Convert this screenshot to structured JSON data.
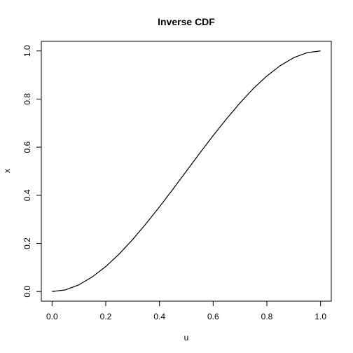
{
  "chart_data": {
    "type": "line",
    "title": "Inverse CDF",
    "xlabel": "u",
    "ylabel": "x",
    "xlim": [
      -0.04,
      1.04
    ],
    "ylim": [
      -0.04,
      1.04
    ],
    "xticks": [
      0.0,
      0.2,
      0.4,
      0.6,
      0.8,
      1.0
    ],
    "yticks": [
      0.0,
      0.2,
      0.4,
      0.6,
      0.8,
      1.0
    ],
    "xtick_labels": [
      "0.0",
      "0.2",
      "0.4",
      "0.6",
      "0.8",
      "1.0"
    ],
    "ytick_labels": [
      "0.0",
      "0.2",
      "0.4",
      "0.6",
      "0.8",
      "1.0"
    ],
    "grid": false,
    "series": [
      {
        "color": "#000000",
        "x": [
          0.0,
          0.05,
          0.1,
          0.15,
          0.2,
          0.25,
          0.3,
          0.35,
          0.4,
          0.45,
          0.5,
          0.55,
          0.6,
          0.65,
          0.7,
          0.75,
          0.8,
          0.85,
          0.9,
          0.95,
          1.0
        ],
        "y": [
          0.0,
          0.007,
          0.028,
          0.061,
          0.104,
          0.156,
          0.216,
          0.282,
          0.352,
          0.425,
          0.5,
          0.575,
          0.648,
          0.718,
          0.784,
          0.844,
          0.896,
          0.939,
          0.972,
          0.993,
          1.0
        ]
      }
    ]
  }
}
